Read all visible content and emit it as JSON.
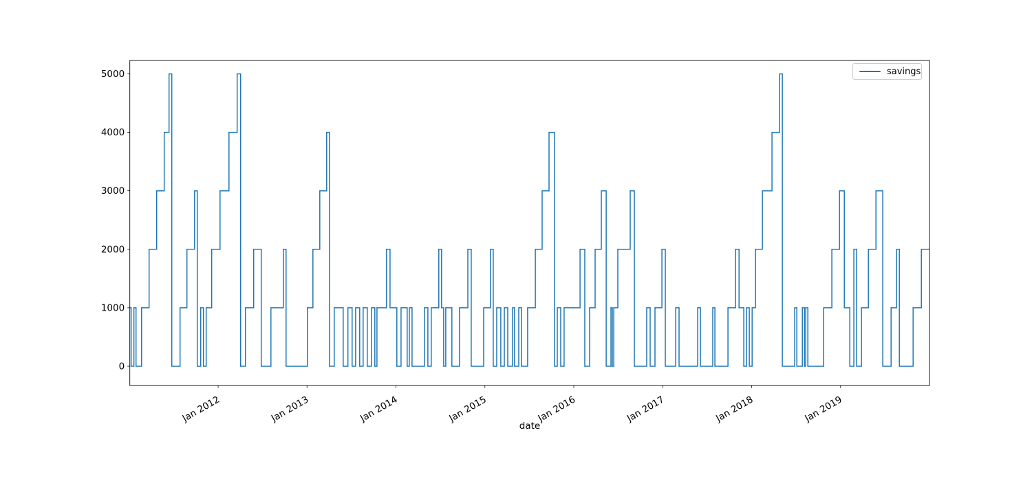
{
  "figure": {
    "background": "#ffffff",
    "xlabel": "date",
    "ylabel": "",
    "title": ""
  },
  "legend": {
    "label": "savings",
    "line_color": "#1f77b4",
    "position": "upper right"
  },
  "chart_data": {
    "type": "line",
    "style": "step-post",
    "title": "",
    "xlabel": "date",
    "ylabel": "",
    "grid": false,
    "legend_entries": [
      "savings"
    ],
    "legend_position": "upper right",
    "xlim": [
      2011.007,
      2020.0
    ],
    "ylim": [
      -329,
      5229
    ],
    "x_ticks": [
      {
        "t": 2012,
        "label": "Jan 2012"
      },
      {
        "t": 2013,
        "label": "Jan 2013"
      },
      {
        "t": 2014,
        "label": "Jan 2014"
      },
      {
        "t": 2015,
        "label": "Jan 2015"
      },
      {
        "t": 2016,
        "label": "Jan 2016"
      },
      {
        "t": 2017,
        "label": "Jan 2017"
      },
      {
        "t": 2018,
        "label": "Jan 2018"
      },
      {
        "t": 2019,
        "label": "Jan 2019"
      }
    ],
    "y_ticks": [
      {
        "v": 0,
        "label": "0"
      },
      {
        "v": 1000,
        "label": "1000"
      },
      {
        "v": 2000,
        "label": "2000"
      },
      {
        "v": 3000,
        "label": "3000"
      },
      {
        "v": 4000,
        "label": "4000"
      },
      {
        "v": 5000,
        "label": "5000"
      }
    ],
    "series": [
      {
        "name": "savings",
        "color": "#1f77b4",
        "line_width": 1.5,
        "points": [
          [
            2011.007,
            1000
          ],
          [
            2011.022,
            0
          ],
          [
            2011.053,
            1000
          ],
          [
            2011.077,
            0
          ],
          [
            2011.139,
            1000
          ],
          [
            2011.224,
            2000
          ],
          [
            2011.309,
            3000
          ],
          [
            2011.394,
            4000
          ],
          [
            2011.448,
            5000
          ],
          [
            2011.479,
            0
          ],
          [
            2011.572,
            1000
          ],
          [
            2011.649,
            2000
          ],
          [
            2011.735,
            3000
          ],
          [
            2011.765,
            0
          ],
          [
            2011.804,
            1000
          ],
          [
            2011.835,
            0
          ],
          [
            2011.866,
            1000
          ],
          [
            2011.928,
            2000
          ],
          [
            2012.021,
            3000
          ],
          [
            2012.122,
            4000
          ],
          [
            2012.214,
            5000
          ],
          [
            2012.253,
            0
          ],
          [
            2012.307,
            1000
          ],
          [
            2012.4,
            2000
          ],
          [
            2012.485,
            0
          ],
          [
            2012.594,
            1000
          ],
          [
            2012.733,
            2000
          ],
          [
            2012.764,
            0
          ],
          [
            2013.004,
            1000
          ],
          [
            2013.066,
            2000
          ],
          [
            2013.143,
            3000
          ],
          [
            2013.221,
            4000
          ],
          [
            2013.252,
            0
          ],
          [
            2013.306,
            1000
          ],
          [
            2013.406,
            0
          ],
          [
            2013.46,
            1000
          ],
          [
            2013.507,
            0
          ],
          [
            2013.546,
            1000
          ],
          [
            2013.592,
            0
          ],
          [
            2013.631,
            1000
          ],
          [
            2013.677,
            0
          ],
          [
            2013.724,
            1000
          ],
          [
            2013.762,
            0
          ],
          [
            2013.786,
            1000
          ],
          [
            2013.894,
            2000
          ],
          [
            2013.933,
            1000
          ],
          [
            2014.01,
            0
          ],
          [
            2014.057,
            1000
          ],
          [
            2014.126,
            0
          ],
          [
            2014.15,
            1000
          ],
          [
            2014.181,
            0
          ],
          [
            2014.32,
            1000
          ],
          [
            2014.359,
            0
          ],
          [
            2014.397,
            1000
          ],
          [
            2014.482,
            2000
          ],
          [
            2014.513,
            1000
          ],
          [
            2014.537,
            0
          ],
          [
            2014.56,
            1000
          ],
          [
            2014.629,
            0
          ],
          [
            2014.715,
            1000
          ],
          [
            2014.808,
            2000
          ],
          [
            2014.846,
            0
          ],
          [
            2014.986,
            1000
          ],
          [
            2015.063,
            2000
          ],
          [
            2015.094,
            0
          ],
          [
            2015.133,
            1000
          ],
          [
            2015.179,
            0
          ],
          [
            2015.218,
            1000
          ],
          [
            2015.257,
            0
          ],
          [
            2015.311,
            1000
          ],
          [
            2015.334,
            0
          ],
          [
            2015.381,
            1000
          ],
          [
            2015.412,
            0
          ],
          [
            2015.481,
            1000
          ],
          [
            2015.567,
            2000
          ],
          [
            2015.644,
            3000
          ],
          [
            2015.721,
            4000
          ],
          [
            2015.783,
            0
          ],
          [
            2015.814,
            1000
          ],
          [
            2015.853,
            0
          ],
          [
            2015.891,
            1000
          ],
          [
            2016.07,
            2000
          ],
          [
            2016.124,
            0
          ],
          [
            2016.178,
            1000
          ],
          [
            2016.24,
            2000
          ],
          [
            2016.309,
            3000
          ],
          [
            2016.364,
            0
          ],
          [
            2016.418,
            1000
          ],
          [
            2016.433,
            0
          ],
          [
            2016.449,
            1000
          ],
          [
            2016.495,
            2000
          ],
          [
            2016.634,
            3000
          ],
          [
            2016.681,
            0
          ],
          [
            2016.82,
            1000
          ],
          [
            2016.859,
            0
          ],
          [
            2016.913,
            1000
          ],
          [
            2016.991,
            2000
          ],
          [
            2017.029,
            0
          ],
          [
            2017.146,
            1000
          ],
          [
            2017.184,
            0
          ],
          [
            2017.393,
            1000
          ],
          [
            2017.424,
            0
          ],
          [
            2017.563,
            1000
          ],
          [
            2017.587,
            0
          ],
          [
            2017.734,
            1000
          ],
          [
            2017.819,
            2000
          ],
          [
            2017.858,
            1000
          ],
          [
            2017.912,
            0
          ],
          [
            2017.943,
            1000
          ],
          [
            2017.974,
            0
          ],
          [
            2018.005,
            1000
          ],
          [
            2018.043,
            2000
          ],
          [
            2018.121,
            3000
          ],
          [
            2018.229,
            4000
          ],
          [
            2018.314,
            5000
          ],
          [
            2018.345,
            0
          ],
          [
            2018.484,
            1000
          ],
          [
            2018.508,
            0
          ],
          [
            2018.57,
            1000
          ],
          [
            2018.593,
            0
          ],
          [
            2018.608,
            1000
          ],
          [
            2018.632,
            0
          ],
          [
            2018.81,
            1000
          ],
          [
            2018.902,
            2000
          ],
          [
            2018.988,
            3000
          ],
          [
            2019.042,
            1000
          ],
          [
            2019.104,
            0
          ],
          [
            2019.15,
            2000
          ],
          [
            2019.181,
            0
          ],
          [
            2019.235,
            1000
          ],
          [
            2019.313,
            2000
          ],
          [
            2019.398,
            3000
          ],
          [
            2019.475,
            0
          ],
          [
            2019.568,
            1000
          ],
          [
            2019.63,
            2000
          ],
          [
            2019.661,
            0
          ],
          [
            2019.816,
            1000
          ],
          [
            2019.909,
            2000
          ]
        ]
      }
    ]
  }
}
